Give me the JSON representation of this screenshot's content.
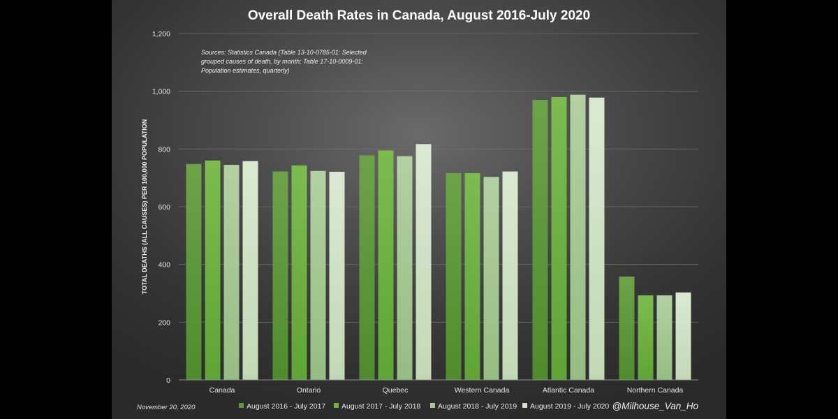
{
  "colors": {
    "background": "#000000",
    "series": [
      "#5e9a3a",
      "#6fb43f",
      "#a8c996",
      "#d2e3c9"
    ]
  },
  "chart_data": {
    "type": "bar",
    "title": "Overall Death Rates in Canada, August 2016-July 2020",
    "source_note": [
      "Sources: Statistics Canada (Table 13-10-0785-01: Selected",
      "grouped causes of death, by month; Table 17-10-0009-01:",
      "Population estimates, quarterly)"
    ],
    "ylabel": "TOTAL DEATHS (ALL CAUSES) PER 100,000 POPULATION",
    "xlabel": "",
    "ylim": [
      0,
      1200
    ],
    "yticks": [
      0,
      200,
      400,
      600,
      800,
      1000,
      1200
    ],
    "ytick_labels": [
      "0",
      "200",
      "400",
      "600",
      "800",
      "1,000",
      "1,200"
    ],
    "grid": true,
    "legend_position": "bottom",
    "categories": [
      "Canada",
      "Ontario",
      "Quebec",
      "Western Canada",
      "Atlantic Canada",
      "Northern Canada"
    ],
    "series": [
      {
        "name": "August 2016 - July 2017",
        "values": [
          748,
          722,
          778,
          716,
          970,
          358
        ]
      },
      {
        "name": "August 2017 - July 2018",
        "values": [
          760,
          743,
          795,
          716,
          980,
          293
        ]
      },
      {
        "name": "August 2018 - July 2019",
        "values": [
          745,
          724,
          775,
          703,
          988,
          293
        ]
      },
      {
        "name": "August 2019 - July 2020",
        "values": [
          758,
          721,
          817,
          722,
          978,
          303
        ]
      }
    ]
  },
  "footer": {
    "date": "November 20, 2020",
    "handle": "@Milhouse_Van_Ho"
  }
}
